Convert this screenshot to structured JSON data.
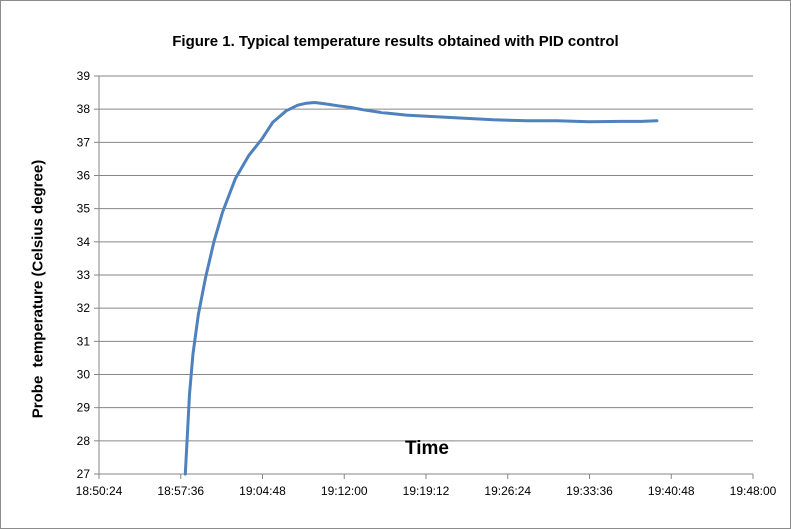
{
  "chart_data": {
    "type": "line",
    "title": "Figure 1. Typical temperature results obtained with PID control",
    "xlabel": "Time",
    "ylabel": "Probe  temperature (Celsius degree)",
    "xlim": [
      "18:50:24",
      "19:48:00"
    ],
    "ylim": [
      27,
      39
    ],
    "x_ticks": [
      "18:50:24",
      "18:57:36",
      "19:04:48",
      "19:12:00",
      "19:19:12",
      "19:26:24",
      "19:33:36",
      "19:40:48",
      "19:48:00"
    ],
    "y_ticks": [
      27,
      28,
      29,
      30,
      31,
      32,
      33,
      34,
      35,
      36,
      37,
      38,
      39
    ],
    "grid": "horizontal",
    "legend": "none",
    "series": [
      {
        "color": "#4f81bd",
        "x": [
          "18:58:00",
          "18:58:11",
          "18:58:22",
          "18:58:40",
          "18:59:09",
          "18:59:46",
          "19:00:31",
          "19:01:17",
          "19:02:24",
          "19:03:35",
          "19:04:45",
          "19:05:42",
          "19:06:53",
          "19:07:54",
          "19:08:40",
          "19:09:23",
          "19:10:06",
          "19:10:42",
          "19:11:28",
          "19:12:36",
          "19:13:41",
          "19:15:16",
          "19:17:28",
          "19:19:41",
          "19:22:24",
          "19:25:07",
          "19:28:06",
          "19:30:45",
          "19:33:36",
          "19:36:22",
          "19:38:13",
          "19:39:32"
        ],
        "values": [
          27.0,
          28.2,
          29.4,
          30.6,
          31.8,
          32.9,
          34.0,
          34.9,
          35.9,
          36.6,
          37.1,
          37.6,
          37.95,
          38.12,
          38.18,
          38.2,
          38.17,
          38.14,
          38.1,
          38.05,
          37.98,
          37.9,
          37.82,
          37.78,
          37.73,
          37.68,
          37.65,
          37.65,
          37.62,
          37.63,
          37.63,
          37.65
        ]
      }
    ]
  }
}
